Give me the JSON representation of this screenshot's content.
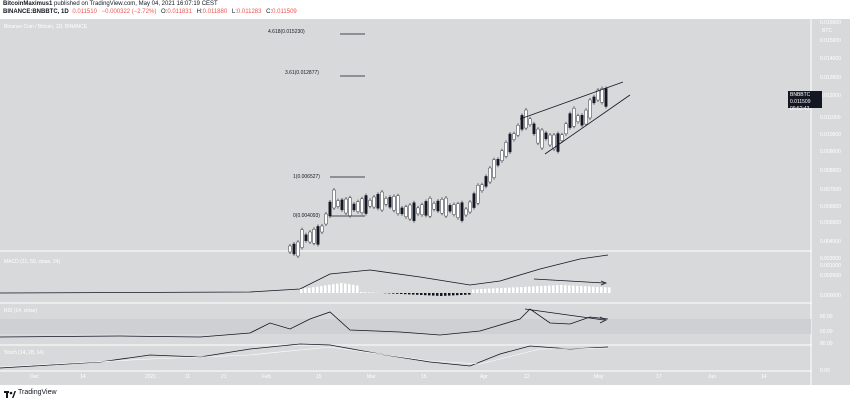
{
  "header": {
    "author": "BitcoinMaximus1",
    "published_text": "published on TradingView.com, May 04, 2021 16:07:19 CEST",
    "symbol": "BINANCE:BNBBTC, 1D",
    "ohlc_prefix": "0.011510",
    "change": "−0.000322 (−2.72%)",
    "open_label": "O:",
    "open_value": "0.011831",
    "high_label": "H:",
    "high_value": "0.011880",
    "low_label": "L:",
    "low_value": "0.011283",
    "close_label": "C:",
    "close_value": "0.011509"
  },
  "pane_titles": {
    "main": "Binance Coin / Bitcoin, 1D, BINANCE",
    "macd": "MACD (21, 50, close, 24)",
    "rsi": "RSI (14, close)",
    "stoch": "Stoch (14, 28, 14)"
  },
  "price_axis": {
    "currency": "BTC",
    "ticks": [
      "0.016000",
      "0.015000",
      "0.014000",
      "0.013000",
      "0.012000",
      "0.011000",
      "0.010000",
      "0.009000",
      "0.008000",
      "0.007000",
      "0.006000",
      "0.005000",
      "0.004000",
      "0.003000",
      "0.002000"
    ],
    "macd_ticks": [
      "0.001000",
      "0.000000"
    ],
    "rsi_ticks": [
      "80.00",
      "60.00"
    ],
    "stoch_ticks": [
      "80.00",
      "0.00"
    ]
  },
  "price_badge": {
    "symbol": "BNBBTC",
    "price": "0.011509",
    "countdown": "09:52:43"
  },
  "fib_levels": [
    {
      "label": "4.618(0.015230)",
      "value": 0.01523
    },
    {
      "label": "3.61(0.012877)",
      "value": 0.012877
    },
    {
      "label": "1(0.006527)",
      "value": 0.006527
    },
    {
      "label": "0(0.004093)",
      "value": 0.004093
    }
  ],
  "time_axis": [
    "Dec",
    "14",
    "2021",
    "11",
    "21",
    "Feb",
    "15",
    "Mar",
    "15",
    "Apr",
    "12",
    "May",
    "17",
    "Jun",
    "14"
  ],
  "footer": {
    "brand": "TradingView"
  },
  "colors": {
    "background": "#d8d9db",
    "up_candle": "#ffffff",
    "down_candle": "#131722",
    "line": "#131722",
    "text_light": "#ffffff"
  }
}
